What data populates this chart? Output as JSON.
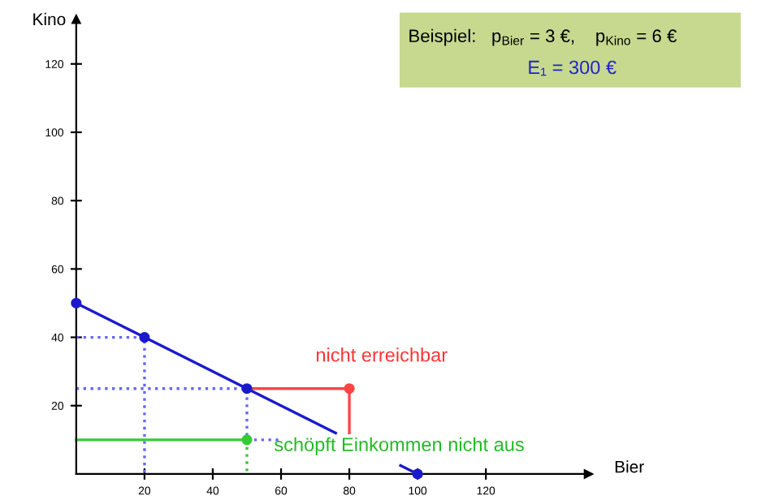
{
  "chart_data": {
    "type": "line",
    "xlabel": "Bier",
    "ylabel": "Kino",
    "xlim": [
      0,
      150
    ],
    "ylim": [
      0,
      133
    ],
    "xticks": [
      20,
      40,
      60,
      80,
      100,
      120
    ],
    "yticks": [
      20,
      40,
      60,
      80,
      100,
      120
    ],
    "grid": false,
    "legend": false,
    "series": [
      {
        "type": "line",
        "color": "#6666ff",
        "line_style": "dotted",
        "x": [
          0,
          20,
          20
        ],
        "values": [
          40,
          40,
          0
        ]
      },
      {
        "type": "line",
        "color": "#6666ff",
        "line_style": "dotted",
        "x": [
          0,
          50,
          50
        ],
        "values": [
          25,
          25,
          10
        ]
      },
      {
        "type": "line",
        "color": "#6666ff",
        "line_style": "dotted",
        "x": [
          50,
          60
        ],
        "values": [
          10,
          10
        ]
      },
      {
        "type": "line",
        "color": "#33cc33",
        "line_style": "dotted",
        "x": [
          50,
          50
        ],
        "values": [
          10,
          0
        ]
      },
      {
        "type": "line",
        "color": "#33cc33",
        "line_style": "solid",
        "x": [
          0,
          50
        ],
        "values": [
          10,
          10
        ]
      },
      {
        "type": "line",
        "color": "#ff4444",
        "line_style": "solid",
        "x": [
          50,
          80,
          80
        ],
        "values": [
          25,
          25,
          12
        ]
      },
      {
        "color": "#1a1acc",
        "line_style": "solid",
        "x": [
          0,
          20,
          50,
          76,
          86,
          95,
          100
        ],
        "values": [
          50,
          40,
          25,
          12,
          null,
          2.5,
          0
        ]
      },
      {
        "type": "scatter",
        "color": "#1a1acc",
        "marker": "circle",
        "x": [
          0,
          20,
          50,
          100
        ],
        "values": [
          50,
          40,
          25,
          0
        ]
      },
      {
        "type": "scatter",
        "color": "#ff4444",
        "marker": "circle",
        "x": [
          80
        ],
        "values": [
          25
        ]
      },
      {
        "type": "scatter",
        "color": "#33cc33",
        "marker": "circle",
        "x": [
          50
        ],
        "values": [
          10
        ]
      }
    ],
    "annotations": [
      {
        "text": "nicht erreichbar",
        "x": 80,
        "y": 25
      },
      {
        "text": "schöpft Einkommen nicht aus",
        "x": 50,
        "y": 10
      },
      "Beispiel:   p$_{Bier}$ = 3 €,    p$_{Kino}$ = 6 €",
      "E₁ = 300 €"
    ]
  }
}
